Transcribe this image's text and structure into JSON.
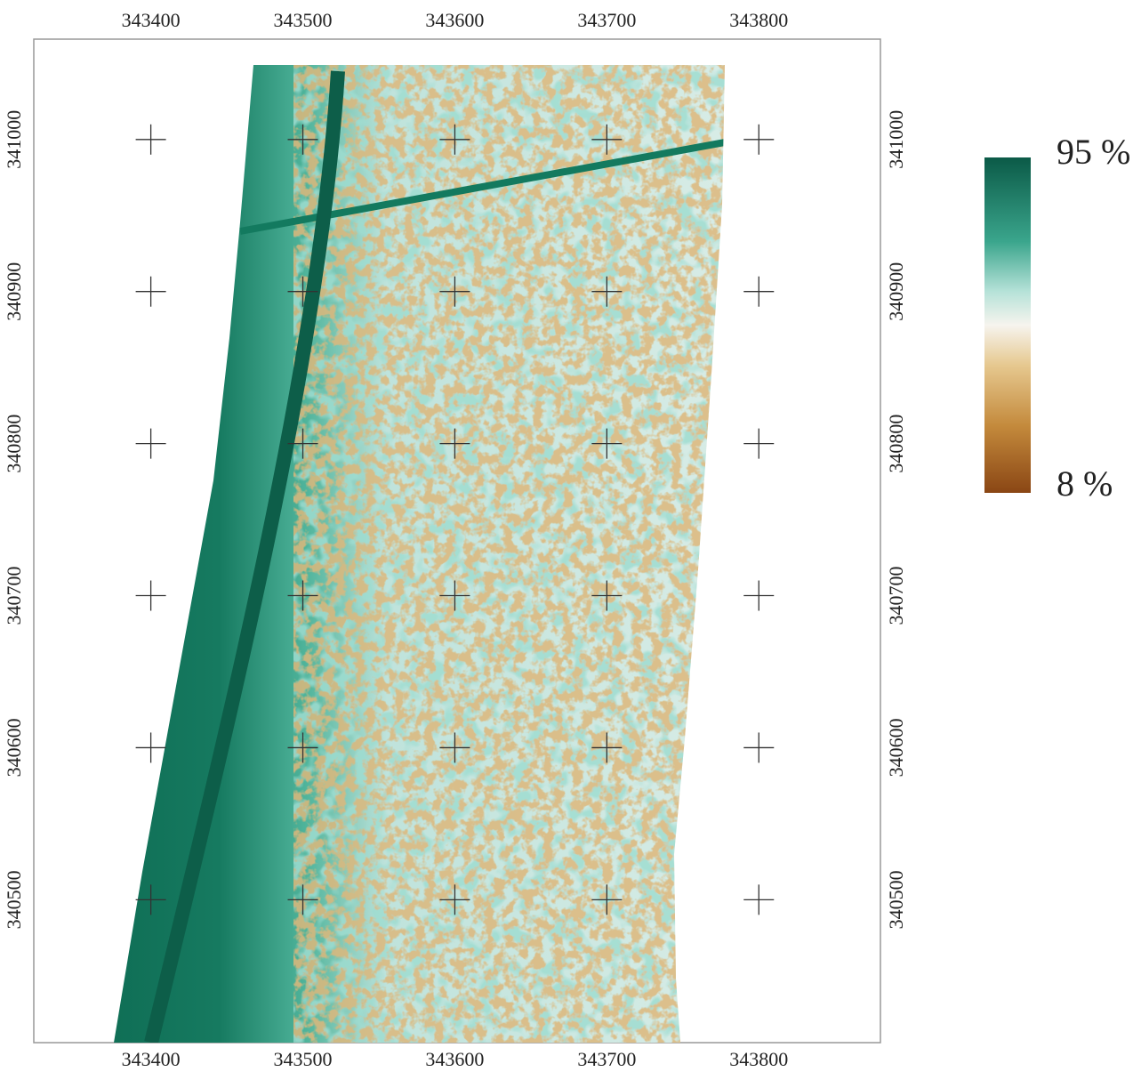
{
  "map": {
    "xlim": [
      343323,
      343880
    ],
    "ylim": [
      340406,
      341066
    ],
    "xticks": [
      343400,
      343500,
      343600,
      343700,
      343800
    ],
    "yticks": [
      340500,
      340600,
      340700,
      340800,
      340900,
      341000
    ],
    "legend": {
      "max_label": "95 %",
      "min_label": "8 %"
    }
  }
}
